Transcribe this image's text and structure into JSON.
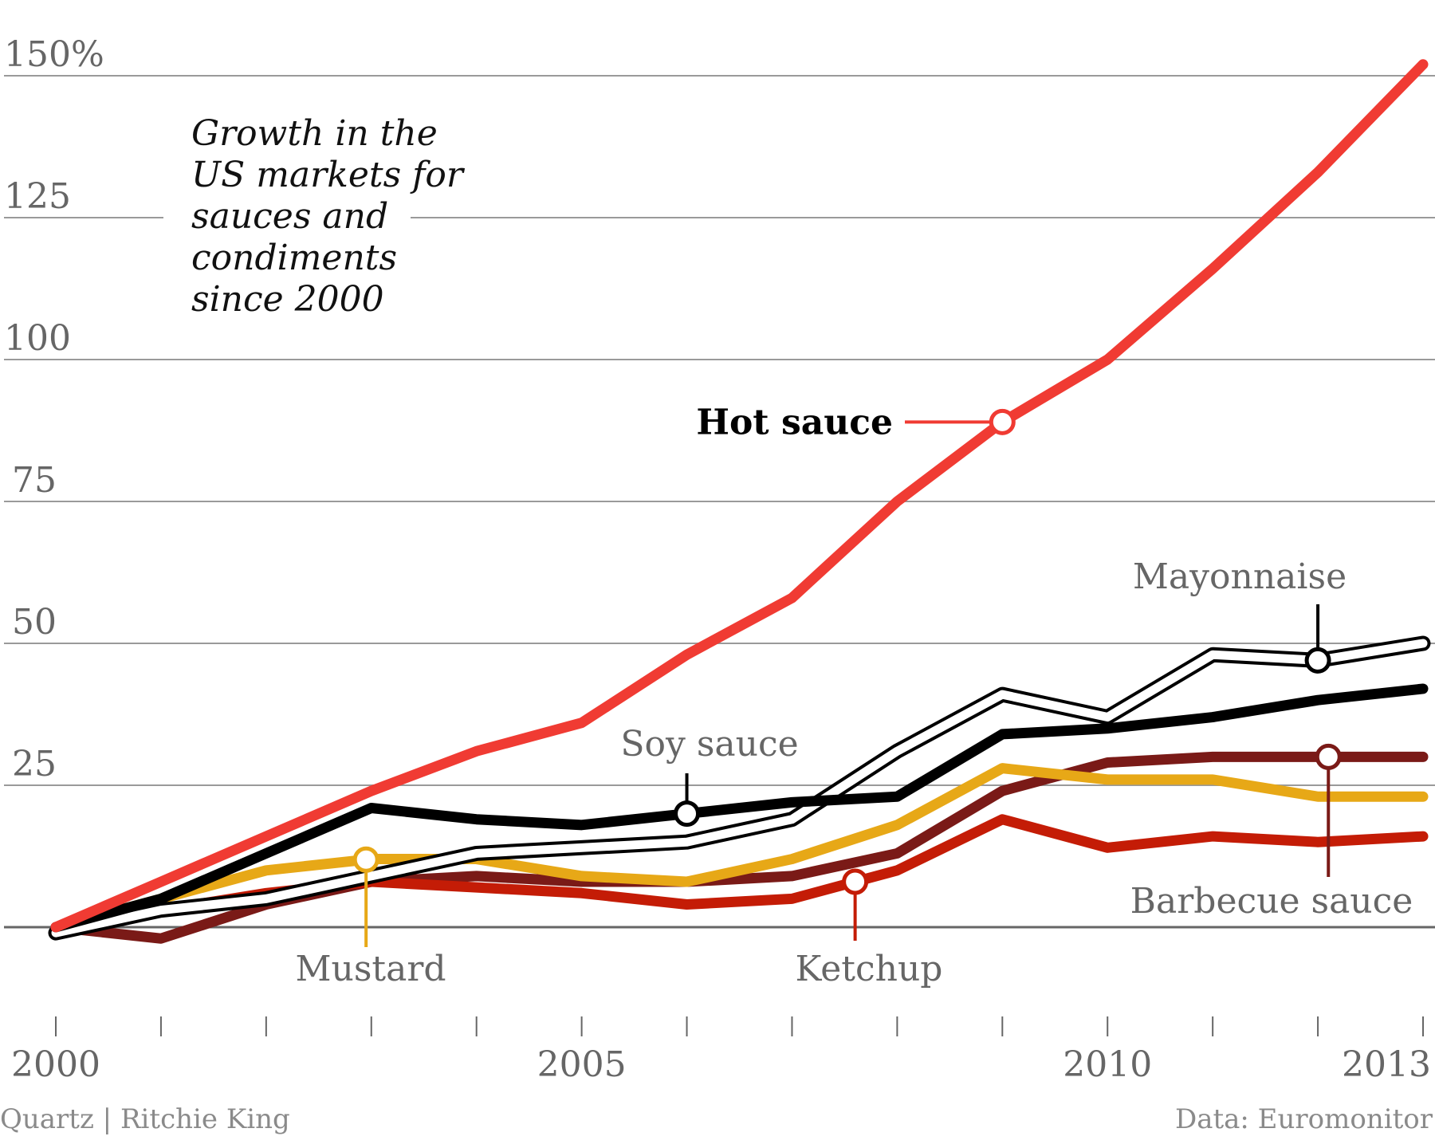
{
  "chart_data": {
    "type": "line",
    "title_lines": [
      "Growth in the",
      "US markets for",
      "sauces and",
      "condiments",
      "since 2000"
    ],
    "y_unit": "%",
    "ylim": [
      -10,
      155
    ],
    "y_ticks": [
      0,
      25,
      50,
      75,
      100,
      125,
      150
    ],
    "y_tick_labels": [
      "",
      "25",
      "50",
      "75",
      "100",
      "125",
      "150%"
    ],
    "x": [
      2000,
      2001,
      2002,
      2003,
      2004,
      2005,
      2006,
      2007,
      2008,
      2009,
      2010,
      2011,
      2012,
      2013
    ],
    "x_tick_labels": [
      {
        "year": 2000,
        "label": "2000"
      },
      {
        "year": 2005,
        "label": "2005"
      },
      {
        "year": 2010,
        "label": "2010"
      },
      {
        "year": 2013,
        "label": "2013"
      }
    ],
    "grid": true,
    "series": [
      {
        "name": "Hot sauce",
        "color": "#f03b33",
        "style": "solid",
        "values": [
          0,
          8,
          16,
          24,
          31,
          36,
          48,
          58,
          75,
          89,
          100,
          116,
          133,
          152
        ],
        "label_year": 2009
      },
      {
        "name": "Mayonnaise",
        "color": "#000000",
        "style": "double",
        "values": [
          -1,
          3,
          5,
          9,
          13,
          14,
          15,
          19,
          31,
          41,
          37,
          48,
          47,
          50
        ],
        "label_year": 2012
      },
      {
        "name": "Soy sauce",
        "color": "#000000",
        "style": "solid",
        "values": [
          0,
          5,
          13,
          21,
          19,
          18,
          20,
          22,
          23,
          34,
          35,
          37,
          40,
          42
        ],
        "label_year": 2006
      },
      {
        "name": "Barbecue sauce",
        "color": "#7a1a17",
        "style": "solid",
        "values": [
          0,
          -2,
          4,
          8,
          9,
          8,
          8,
          9,
          13,
          24,
          29,
          30,
          30,
          30
        ],
        "label_year": 2012.1
      },
      {
        "name": "Mustard",
        "color": "#e7a817",
        "style": "solid",
        "values": [
          0,
          5,
          10,
          12,
          12,
          9,
          8,
          12,
          18,
          28,
          26,
          26,
          23,
          23
        ],
        "label_year": 2002.95
      },
      {
        "name": "Ketchup",
        "color": "#c41c06",
        "style": "solid",
        "values": [
          0,
          3,
          6,
          8,
          7,
          6,
          4,
          5,
          10,
          19,
          14,
          16,
          15,
          16
        ],
        "label_year": 2007.6
      }
    ],
    "legend": "labels placed next to lines",
    "credit_left": "Quartz | Ritchie King",
    "credit_right": "Data: Euromonitor"
  }
}
